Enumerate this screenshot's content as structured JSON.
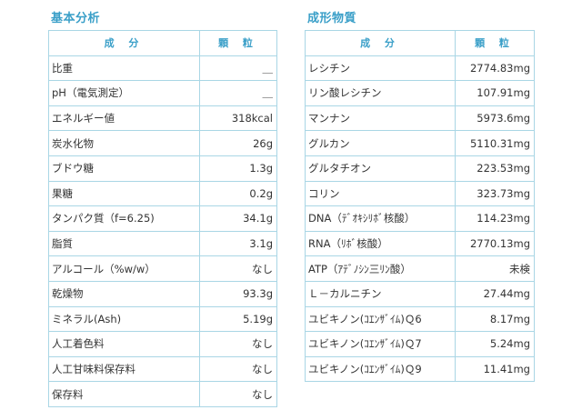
{
  "basic_analysis": {
    "title": "基本分析",
    "headers": {
      "component": "成 分",
      "amount": "顆 粒"
    },
    "rows": [
      {
        "name": "比重",
        "value": "＿"
      },
      {
        "name": "pH（電気測定）",
        "value": "＿"
      },
      {
        "name": "エネルギー値",
        "value": "318kcal"
      },
      {
        "name": "炭水化物",
        "value": "26g"
      },
      {
        "name": "ブドウ糖",
        "value": "1.3g"
      },
      {
        "name": "果糖",
        "value": "0.2g"
      },
      {
        "name": "タンパク質（f=6.25)",
        "value": "34.1g"
      },
      {
        "name": "脂質",
        "value": "3.1g"
      },
      {
        "name": "アルコール（%w/w）",
        "value": "なし"
      },
      {
        "name": "乾燥物",
        "value": "93.3g"
      },
      {
        "name": "ミネラル(Ash)",
        "value": "5.19g"
      },
      {
        "name": "人工着色料",
        "value": "なし"
      },
      {
        "name": "人工甘味料保存料",
        "value": "なし"
      },
      {
        "name": "保存料",
        "value": "なし"
      }
    ]
  },
  "components": {
    "title": "成形物質",
    "headers": {
      "component": "成 分",
      "amount": "顆 粒"
    },
    "rows": [
      {
        "name": "レシチン",
        "value": "2774.83mg"
      },
      {
        "name": "リン酸レシチン",
        "value": "107.91mg"
      },
      {
        "name": "マンナン",
        "value": "5973.6mg"
      },
      {
        "name": "グルカン",
        "value": "5110.31mg"
      },
      {
        "name": "グルタチオン",
        "value": "223.53mg"
      },
      {
        "name": "コリン",
        "value": "323.73mg"
      },
      {
        "name": "DNA（ﾃﾞｵｷｼﾘﾎﾞ核酸）",
        "value": "114.23mg"
      },
      {
        "name": "RNA（ﾘﾎﾞ核酸）",
        "value": "2770.13mg"
      },
      {
        "name": "ATP（ｱﾃﾞﾉｼﾝ三ﾘﾝ酸）",
        "value": "未検"
      },
      {
        "name": "Ｌ－カルニチン",
        "value": "27.44mg"
      },
      {
        "name": "ユビキノン(ｺｴﾝｻﾞｲﾑ)Ｑ6",
        "value": "8.17mg"
      },
      {
        "name": "ユビキノン(ｺｴﾝｻﾞｲﾑ)Ｑ7",
        "value": "5.24mg"
      },
      {
        "name": "ユビキノン(ｺｴﾝｻﾞｲﾑ)Ｑ9",
        "value": "11.41mg"
      }
    ]
  }
}
